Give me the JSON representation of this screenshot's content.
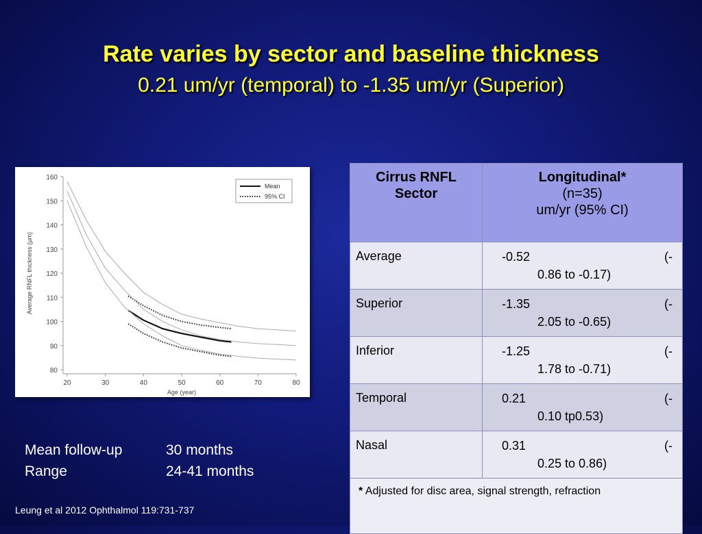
{
  "title": "Rate varies by sector and baseline thickness",
  "subtitle": "0.21 um/yr (temporal) to -1.35 um/yr (Superior)",
  "chart_data": {
    "type": "line",
    "xlabel": "Age (year)",
    "ylabel": "Average RNFL thickness (µm)",
    "xlim": [
      20,
      80
    ],
    "ylim": [
      80,
      160
    ],
    "x_ticks": [
      "20",
      "30",
      "40",
      "50",
      "60",
      "70",
      "80"
    ],
    "y_ticks": [
      "80",
      "90",
      "100",
      "110",
      "120",
      "130",
      "140",
      "150",
      "160"
    ],
    "legend_position": "top-right",
    "grid": false,
    "series": [
      {
        "name": "Mean",
        "style": "solid-thick",
        "x": [
          36,
          40,
          45,
          50,
          55,
          60,
          63
        ],
        "y": [
          104.5,
          100.5,
          97,
          95,
          93.5,
          92,
          91.5
        ]
      },
      {
        "name": "95% CI",
        "style": "dotted",
        "x": [
          36,
          40,
          45,
          50,
          55,
          60,
          63
        ],
        "y": [
          110.5,
          106.5,
          102.5,
          100,
          98.5,
          97.5,
          97
        ]
      },
      {
        "name": "",
        "style": "dotted",
        "x": [
          36,
          40,
          45,
          50,
          55,
          60,
          63
        ],
        "y": [
          99,
          95,
          91.5,
          89,
          87.5,
          86,
          85.5
        ]
      },
      {
        "name": "",
        "style": "thin-gray",
        "x": [
          20,
          25,
          30,
          35,
          40,
          45,
          50,
          55,
          60,
          65,
          70,
          75,
          80
        ],
        "y": [
          158,
          142,
          129,
          120,
          112,
          107,
          103,
          101,
          99.5,
          98,
          97,
          96.5,
          96
        ]
      },
      {
        "name": "",
        "style": "thin-gray",
        "x": [
          20,
          25,
          30,
          35,
          40,
          45,
          50,
          55,
          60,
          65,
          70,
          75,
          80
        ],
        "y": [
          154,
          136,
          122,
          113,
          105,
          100,
          96.5,
          94,
          92.5,
          91.5,
          90.8,
          90.4,
          90
        ]
      },
      {
        "name": "",
        "style": "thin-gray",
        "x": [
          20,
          25,
          30,
          35,
          40,
          45,
          50,
          55,
          60,
          65,
          70,
          75,
          80
        ],
        "y": [
          150,
          131,
          116,
          106,
          99,
          94,
          90,
          88,
          86.5,
          85.5,
          84.8,
          84.4,
          84
        ]
      }
    ]
  },
  "table": {
    "header_sector": [
      "Cirrus RNFL",
      "Sector"
    ],
    "header_long_bold": "Longitudinal*",
    "header_long_lines": [
      "(n=35)",
      "um/yr (95% CI)"
    ],
    "rows": [
      {
        "sector": "Average",
        "value": "-0.52",
        "open": "(-",
        "ci": "0.86 to -0.17)"
      },
      {
        "sector": "Superior",
        "value": "-1.35",
        "open": "(-",
        "ci": "2.05 to -0.65)"
      },
      {
        "sector": "Inferior",
        "value": "-1.25",
        "open": "(-",
        "ci": "1.78 to -0.71)"
      },
      {
        "sector": "Temporal",
        "value": "0.21",
        "open": "(-",
        "ci": "0.10 tp0.53)"
      },
      {
        "sector": "Nasal",
        "value": "0.31",
        "open": "(-",
        "ci": "0.25 to 0.86)"
      }
    ],
    "footnote_star": "*",
    "footnote": "Adjusted for disc area, signal strength, refraction"
  },
  "followup": {
    "mean_label": "Mean  follow-up",
    "mean_value": "30 months",
    "range_label": "Range",
    "range_value": "24-41 months"
  },
  "citation": "Leung et al 2012 Ophthalmol 119:731-737"
}
